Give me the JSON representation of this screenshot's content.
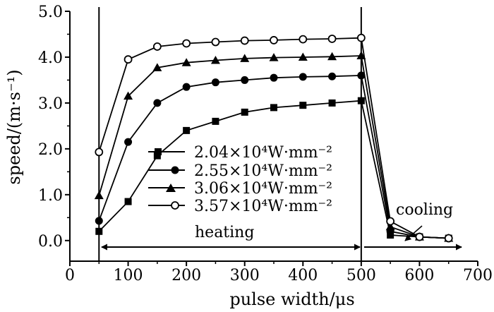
{
  "chart_data": {
    "type": "line",
    "title": "",
    "xlabel": "pulse width/μs",
    "ylabel": "speed/(m·s⁻¹)",
    "xlim": [
      0,
      700
    ],
    "ylim": [
      -0.45,
      5.0
    ],
    "xticks": [
      0,
      100,
      200,
      300,
      400,
      500,
      600,
      700
    ],
    "xtick_labels": [
      "0",
      "100",
      "200",
      "300",
      "400",
      "500",
      "600",
      "700"
    ],
    "yticks": [
      0.0,
      1.0,
      2.0,
      3.0,
      4.0,
      5.0
    ],
    "ytick_labels": [
      "0.0",
      "1.0",
      "2.0",
      "3.0",
      "4.0",
      "5.0"
    ],
    "grid": false,
    "legend_position": "center-left",
    "vertical_lines": [
      50,
      500
    ],
    "series": [
      {
        "name": "2.04×10⁴W·mm⁻²",
        "marker": "square",
        "x": [
          50,
          100,
          150,
          200,
          250,
          300,
          350,
          400,
          450,
          500,
          550,
          600,
          650
        ],
        "y": [
          0.2,
          0.85,
          1.85,
          2.4,
          2.6,
          2.8,
          2.9,
          2.95,
          3.0,
          3.05,
          0.12,
          0.08,
          0.05
        ]
      },
      {
        "name": "2.55×10⁴W·mm⁻²",
        "marker": "circle-filled",
        "x": [
          50,
          100,
          150,
          200,
          250,
          300,
          350,
          400,
          450,
          500,
          550,
          600,
          650
        ],
        "y": [
          0.43,
          2.15,
          3.0,
          3.35,
          3.45,
          3.5,
          3.55,
          3.57,
          3.58,
          3.6,
          0.2,
          0.08,
          0.05
        ]
      },
      {
        "name": "3.06×10⁴W·mm⁻²",
        "marker": "triangle",
        "x": [
          50,
          100,
          150,
          200,
          250,
          300,
          350,
          400,
          450,
          500,
          550,
          600,
          650
        ],
        "y": [
          0.98,
          3.15,
          3.77,
          3.88,
          3.93,
          3.97,
          3.99,
          4.0,
          4.01,
          4.03,
          0.3,
          0.08,
          0.05
        ]
      },
      {
        "name": "3.57×10⁴W·mm⁻²",
        "marker": "circle-open",
        "x": [
          50,
          100,
          150,
          200,
          250,
          300,
          350,
          400,
          450,
          500,
          550,
          600,
          650
        ],
        "y": [
          1.93,
          3.95,
          4.23,
          4.3,
          4.33,
          4.36,
          4.37,
          4.39,
          4.4,
          4.42,
          0.42,
          0.08,
          0.05
        ]
      }
    ],
    "annotations": {
      "heating": "heating",
      "cooling": "cooling"
    }
  }
}
